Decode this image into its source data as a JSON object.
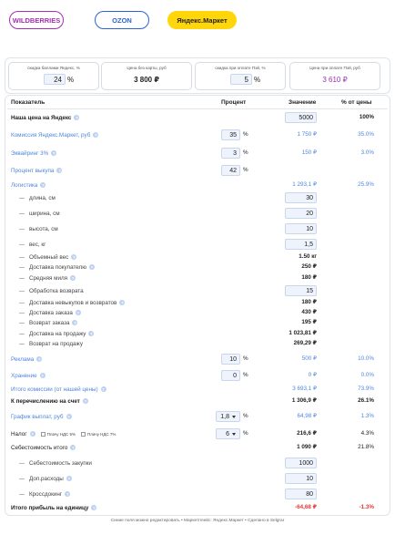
{
  "tabs": [
    {
      "label": "WILDBERRIES"
    },
    {
      "label": "OZON"
    },
    {
      "label": "Яндекс.Маркет",
      "active": true
    }
  ],
  "cards": [
    {
      "label": "скидка баллами Яндекс, %",
      "value": "24",
      "unit": "%",
      "input": true
    },
    {
      "label": "Цена без карты, руб",
      "value": "3 800 ₽"
    },
    {
      "label": "скидка при оплате Пэй, %",
      "value": "5",
      "unit": "%",
      "input": true
    },
    {
      "label": "Цена при оплате Пэй, руб",
      "value": "3 610 ₽",
      "accent": true
    }
  ],
  "help_icon": "?",
  "table": {
    "headers": [
      "Показатель",
      "Процент",
      "Значение",
      "% от цены"
    ],
    "rows": [
      {
        "label": "Наша цена на Яндекс",
        "help": true,
        "style": "bold",
        "value": "5000",
        "value_input": true,
        "share": "100%"
      },
      {
        "label": "Комиссия Яндекс.Маркет, руб",
        "help": true,
        "style": "blue",
        "percent": "35",
        "unit": "%",
        "control": "input",
        "value": "1 750 ₽",
        "share": "35.0%"
      },
      {
        "label": "Эквайринг 3%",
        "help": true,
        "style": "blue",
        "percent": "3",
        "unit": "%",
        "control": "input",
        "value": "150 ₽",
        "share": "3.0%"
      },
      {
        "label": "Процент выкупа",
        "help": true,
        "style": "blue",
        "percent": "42",
        "unit": "%",
        "control": "input"
      },
      {
        "label": "Логистика",
        "help": true,
        "style": "blue",
        "value": "1 293,1 ₽",
        "share": "25.9%"
      },
      {
        "label": "длина, см",
        "indent": true,
        "value": "30",
        "value_input": true
      },
      {
        "label": "ширина, см",
        "indent": true,
        "value": "20",
        "value_input": true
      },
      {
        "label": "высота, см",
        "indent": true,
        "value": "10",
        "value_input": true
      },
      {
        "label": "вес, кг",
        "indent": true,
        "value": "1,5",
        "value_input": true
      },
      {
        "label": "Объемный вес",
        "help": true,
        "indent": true,
        "value": "1.50 кг"
      },
      {
        "label": "Доставка покупателю",
        "help": true,
        "indent": true,
        "value": "250 ₽"
      },
      {
        "label": "Средняя миля",
        "help": true,
        "indent": true,
        "value": "180 ₽"
      },
      {
        "label": "Обработка возврата",
        "indent": true,
        "value": "15",
        "value_input": true
      },
      {
        "label": "Доставка невыкупов и возвратов",
        "help": true,
        "indent": true,
        "value": "180 ₽"
      },
      {
        "label": "Доставка заказа",
        "help": true,
        "indent": true,
        "value": "430 ₽"
      },
      {
        "label": "Возврат заказа",
        "help": true,
        "indent": true,
        "value": "195 ₽"
      },
      {
        "label": "Доставка на продажу",
        "help": true,
        "indent": true,
        "value": "1 023,81 ₽"
      },
      {
        "label": "Возврат на продажу",
        "indent": true,
        "value": "269,29 ₽"
      },
      {
        "label": "Реклама",
        "help": true,
        "style": "blue",
        "percent": "10",
        "unit": "%",
        "control": "input",
        "value": "500 ₽",
        "share": "10.0%"
      },
      {
        "label": "Хранение",
        "help": true,
        "style": "blue",
        "percent": "0",
        "unit": "%",
        "control": "input",
        "value": "0 ₽",
        "share": "0.0%"
      },
      {
        "label": "Итого комиссии (от нашей цены)",
        "help": true,
        "style": "blue",
        "value": "3 693,1 ₽",
        "share": "73.9%"
      },
      {
        "label": "К перечислению на счет",
        "help": true,
        "style": "bold",
        "value": "1 306,9 ₽",
        "share": "26.1%"
      },
      {
        "label": "График выплат, руб",
        "help": true,
        "style": "blue",
        "percent": "1,8",
        "unit": "%",
        "control": "select",
        "value": "64,98 ₽",
        "share": "1.3%"
      },
      {
        "label": "Налог",
        "help": true,
        "style": "normal",
        "options": [
          {
            "label": "Плачу НДС 5%"
          },
          {
            "label": "Плачу НДС 7%"
          }
        ],
        "percent": "6",
        "unit": "%",
        "control": "select",
        "value": "216,6 ₽",
        "share": "4.3%"
      },
      {
        "label": "Себестоимость итого",
        "help": true,
        "style": "normal",
        "value": "1 090 ₽",
        "share": "21.8%"
      },
      {
        "label": "Себестоимость закупки",
        "indent": true,
        "value": "1000",
        "value_input": true
      },
      {
        "label": "Доп.расходы",
        "help": true,
        "indent": true,
        "value": "10",
        "value_input": true
      },
      {
        "label": "Кроссдокинг",
        "help": true,
        "indent": true,
        "value": "80",
        "value_input": true
      },
      {
        "label": "Итого прибыль на единицу",
        "help": true,
        "style": "profit",
        "value": "-64,68 ₽",
        "share": "-1.3%"
      }
    ]
  },
  "footer": "Синие поля можно редактировать • Маркетплейс: Яндекс.Маркет • Сделано в Selgrar"
}
